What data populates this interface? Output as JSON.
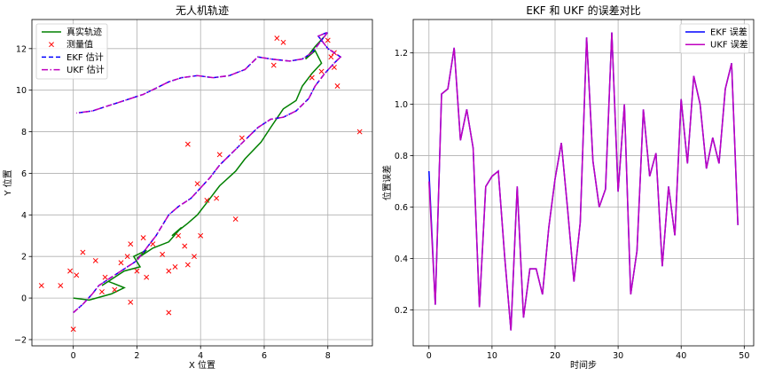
{
  "chart_data": [
    {
      "type": "line",
      "title": "无人机轨迹",
      "xlabel": "X 位置",
      "ylabel": "Y 位置",
      "xlim": [
        -1.3,
        9.4
      ],
      "ylim": [
        -2.3,
        13.4
      ],
      "xticks": [
        0,
        2,
        4,
        6,
        8
      ],
      "yticks": [
        -2,
        0,
        2,
        4,
        6,
        8,
        10,
        12
      ],
      "grid": true,
      "legend_position": "top-left",
      "colors": {
        "true": "#008000",
        "meas": "#ff0000",
        "ekf": "#0000ff",
        "ukf": "#bf00bf"
      },
      "series": [
        {
          "name": "真实轨迹",
          "style": "solid",
          "x": [
            0,
            0.5,
            1.2,
            1.6,
            1.1,
            0.9,
            1.6,
            2.1,
            1.9,
            2.3,
            2.0,
            2.5,
            3.0,
            3.4,
            3.1,
            3.6,
            3.9,
            4.2,
            4.6,
            5.1,
            5.4,
            5.9,
            6.2,
            6.6,
            7.0,
            7.2,
            7.5,
            7.8,
            7.6,
            7.3,
            7.6,
            7.9
          ],
          "y": [
            0,
            -0.1,
            0.2,
            0.5,
            0.8,
            0.6,
            1.3,
            1.5,
            2.0,
            2.3,
            1.9,
            2.4,
            2.7,
            3.4,
            3.0,
            3.6,
            4.0,
            4.6,
            5.4,
            6.1,
            6.7,
            7.5,
            8.2,
            9.1,
            9.5,
            10.2,
            10.8,
            11.3,
            11.9,
            11.5,
            12.1,
            12.6
          ]
        },
        {
          "name": "测量值",
          "style": "x",
          "x": [
            -1.0,
            -0.4,
            0.0,
            0.3,
            0.7,
            0.9,
            1.0,
            1.3,
            1.5,
            1.8,
            1.8,
            2.0,
            2.3,
            2.5,
            2.2,
            1.7,
            3.0,
            3.0,
            3.3,
            3.5,
            3.6,
            3.8,
            3.9,
            4.0,
            4.2,
            4.6,
            4.5,
            5.1,
            5.3,
            3.6,
            6.3,
            6.6,
            6.4,
            7.5,
            7.8,
            8.0,
            8.1,
            8.2,
            8.3,
            8.2,
            9.0,
            0.1,
            -0.1,
            2.8,
            3.2
          ],
          "y": [
            0.6,
            0.6,
            -1.5,
            2.2,
            1.8,
            0.3,
            1.0,
            0.4,
            1.7,
            -0.2,
            2.6,
            1.3,
            1.0,
            2.6,
            2.9,
            2.0,
            1.3,
            -0.7,
            3.0,
            2.5,
            7.4,
            2.0,
            5.5,
            3.0,
            4.7,
            6.9,
            4.8,
            3.8,
            7.7,
            1.6,
            11.2,
            12.3,
            12.5,
            10.6,
            10.9,
            12.4,
            11.6,
            11.1,
            10.2,
            11.8,
            8.0,
            1.1,
            1.3,
            2.1,
            1.5
          ]
        },
        {
          "name": "EKF 估计",
          "style": "dashed",
          "x": [
            0,
            0.3,
            0.6,
            0.8,
            1.2,
            1.5,
            1.7,
            2.0,
            2.2,
            2.4,
            2.6,
            2.8,
            3.0,
            3.3,
            3.7,
            4.0,
            4.3,
            4.6,
            5.0,
            5.4,
            5.8,
            6.2,
            6.6,
            7.0,
            7.4,
            7.6,
            7.9,
            8.2,
            8.4,
            8.0,
            7.7,
            8.0,
            7.5,
            7.2,
            6.8,
            6.2,
            5.8,
            5.4,
            4.9,
            4.4,
            3.9,
            3.4,
            3.0,
            2.6,
            2.2,
            1.8,
            1.4,
            1.0,
            0.6,
            0.1
          ],
          "y": [
            -0.7,
            -0.3,
            0.2,
            0.6,
            1.0,
            1.3,
            1.5,
            1.8,
            2.2,
            2.6,
            3.0,
            3.5,
            4.0,
            4.4,
            4.8,
            5.3,
            5.8,
            6.4,
            7.0,
            7.6,
            8.2,
            8.6,
            8.7,
            9.0,
            9.6,
            10.2,
            10.8,
            11.3,
            11.6,
            12.0,
            12.6,
            12.8,
            11.8,
            11.5,
            11.4,
            11.5,
            11.6,
            11.0,
            10.7,
            10.6,
            10.7,
            10.6,
            10.4,
            10.1,
            9.8,
            9.6,
            9.4,
            9.2,
            9.0,
            8.9
          ]
        },
        {
          "name": "UKF 估计",
          "style": "dashdot",
          "x": [
            0,
            0.3,
            0.6,
            0.8,
            1.2,
            1.5,
            1.7,
            2.0,
            2.2,
            2.4,
            2.6,
            2.8,
            3.0,
            3.3,
            3.7,
            4.0,
            4.3,
            4.6,
            5.0,
            5.4,
            5.8,
            6.2,
            6.6,
            7.0,
            7.4,
            7.6,
            7.9,
            8.2,
            8.4,
            8.0,
            7.7,
            8.0,
            7.5,
            7.2,
            6.8,
            6.2,
            5.8,
            5.4,
            4.9,
            4.4,
            3.9,
            3.4,
            3.0,
            2.6,
            2.2,
            1.8,
            1.4,
            1.0,
            0.6,
            0.1
          ],
          "y": [
            -0.7,
            -0.3,
            0.2,
            0.6,
            1.0,
            1.3,
            1.5,
            1.8,
            2.2,
            2.6,
            3.0,
            3.5,
            4.0,
            4.4,
            4.8,
            5.3,
            5.8,
            6.4,
            7.0,
            7.6,
            8.2,
            8.6,
            8.7,
            9.0,
            9.6,
            10.2,
            10.8,
            11.3,
            11.6,
            12.0,
            12.6,
            12.8,
            11.8,
            11.5,
            11.4,
            11.5,
            11.6,
            11.0,
            10.7,
            10.6,
            10.7,
            10.6,
            10.4,
            10.1,
            9.8,
            9.6,
            9.4,
            9.2,
            9.0,
            8.9
          ]
        }
      ]
    },
    {
      "type": "line",
      "title": "EKF 和 UKF 的误差对比",
      "xlabel": "时间步",
      "ylabel": "位置误差",
      "xlim": [
        -2.5,
        51.5
      ],
      "ylim": [
        0.06,
        1.33
      ],
      "xticks": [
        0,
        10,
        20,
        30,
        40,
        50
      ],
      "yticks": [
        0.2,
        0.4,
        0.6,
        0.8,
        1.0,
        1.2
      ],
      "grid": true,
      "legend_position": "top-right",
      "colors": {
        "ekf": "#0000ff",
        "ukf": "#bf00bf"
      },
      "x": [
        0,
        1,
        2,
        3,
        4,
        5,
        6,
        7,
        8,
        9,
        10,
        11,
        12,
        13,
        14,
        15,
        16,
        17,
        18,
        19,
        20,
        21,
        22,
        23,
        24,
        25,
        26,
        27,
        28,
        29,
        30,
        31,
        32,
        33,
        34,
        35,
        36,
        37,
        38,
        39,
        40,
        41,
        42,
        43,
        44,
        45,
        46,
        47,
        48,
        49
      ],
      "series": [
        {
          "name": "EKF 误差",
          "values": [
            0.74,
            0.22,
            1.04,
            1.06,
            1.22,
            0.86,
            0.98,
            0.83,
            0.21,
            0.68,
            0.72,
            0.74,
            0.41,
            0.12,
            0.68,
            0.17,
            0.36,
            0.36,
            0.26,
            0.52,
            0.71,
            0.85,
            0.59,
            0.31,
            0.54,
            1.26,
            0.78,
            0.6,
            0.67,
            1.28,
            0.66,
            1.0,
            0.26,
            0.43,
            0.98,
            0.72,
            0.81,
            0.37,
            0.68,
            0.49,
            1.02,
            0.77,
            1.11,
            1.0,
            0.75,
            0.87,
            0.77,
            1.06,
            1.16,
            0.53
          ]
        },
        {
          "name": "UKF 误差",
          "values": [
            0.7,
            0.22,
            1.04,
            1.06,
            1.22,
            0.86,
            0.98,
            0.83,
            0.21,
            0.68,
            0.72,
            0.74,
            0.41,
            0.12,
            0.68,
            0.17,
            0.36,
            0.36,
            0.26,
            0.52,
            0.71,
            0.85,
            0.59,
            0.31,
            0.54,
            1.26,
            0.78,
            0.6,
            0.67,
            1.28,
            0.66,
            1.0,
            0.26,
            0.43,
            0.98,
            0.72,
            0.81,
            0.37,
            0.68,
            0.49,
            1.02,
            0.77,
            1.11,
            1.0,
            0.75,
            0.87,
            0.77,
            1.06,
            1.16,
            0.53
          ]
        }
      ]
    }
  ]
}
